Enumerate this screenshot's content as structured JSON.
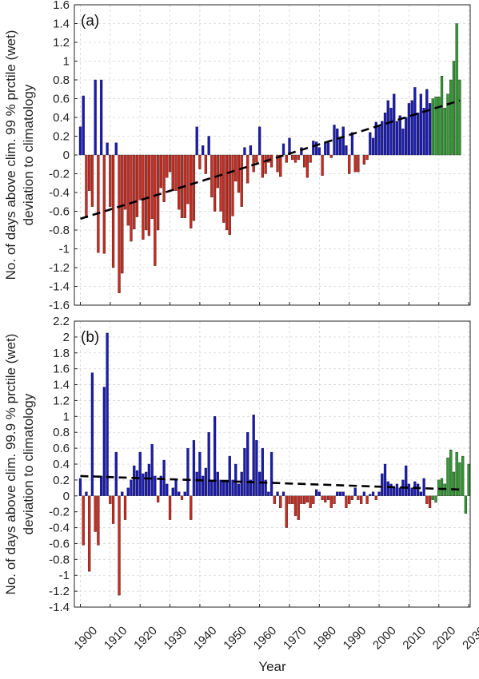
{
  "colors": {
    "negative": "#cc2a1f",
    "positive": "#1a1ab8",
    "recent": "#2e9a2e",
    "trend": "#000000",
    "grid": "#d6d6d6"
  },
  "shared": {
    "xlabel": "Year",
    "x_ticks": [
      1900,
      1910,
      1920,
      1930,
      1940,
      1950,
      1960,
      1970,
      1980,
      1990,
      2000,
      2010,
      2020,
      2030
    ],
    "xlim": [
      1898,
      2030.5
    ],
    "recent_from_year": 2018
  },
  "chart_data": [
    {
      "type": "bar",
      "panel_label": "(a)",
      "ylabel_line1": "No. of days above clim. 99 % prctile (wet)",
      "ylabel_line2": "deviation to climatology",
      "ylim": [
        -1.6,
        1.6
      ],
      "y_ticks": [
        -1.6,
        -1.4,
        -1.2,
        -1,
        -0.8,
        -0.6,
        -0.4,
        -0.2,
        0,
        0.2,
        0.4,
        0.6,
        0.8,
        1,
        1.2,
        1.4,
        1.6
      ],
      "grid": true,
      "start_year": 1900,
      "values": [
        0.3,
        0.63,
        -0.67,
        -0.38,
        -0.55,
        0.8,
        -1.04,
        0.8,
        -1.05,
        0.13,
        -0.55,
        -1.2,
        0.13,
        -1.47,
        -1.26,
        -0.58,
        -0.75,
        -0.92,
        -0.79,
        -0.66,
        -0.48,
        -0.9,
        -0.8,
        -0.86,
        -0.68,
        -1.18,
        -0.8,
        -0.35,
        -0.5,
        -0.24,
        -0.18,
        -0.38,
        -0.38,
        -0.58,
        -0.67,
        -0.67,
        -0.52,
        -0.78,
        -0.7,
        0.3,
        -0.15,
        0.1,
        -0.2,
        0.2,
        -0.45,
        -0.6,
        -0.35,
        -0.6,
        -0.72,
        -0.8,
        -0.85,
        -0.65,
        -0.28,
        -0.4,
        -0.55,
        0.08,
        -0.3,
        0.1,
        -0.18,
        -0.08,
        0.3,
        -0.24,
        -0.2,
        -0.08,
        -0.13,
        0.0,
        -0.18,
        -0.23,
        0.12,
        -0.08,
        0.18,
        -0.05,
        -0.08,
        -0.05,
        0.08,
        -0.13,
        -0.24,
        -0.08,
        0.15,
        0.14,
        0.08,
        -0.22,
        0.14,
        0.13,
        -0.03,
        0.32,
        0.28,
        0.18,
        0.3,
        0.1,
        -0.2,
        0.24,
        -0.18,
        -0.18,
        0.0,
        -0.1,
        -0.05,
        0.24,
        0.18,
        0.35,
        0.3,
        0.36,
        0.45,
        0.58,
        0.5,
        0.65,
        0.36,
        0.42,
        0.28,
        0.4,
        0.55,
        0.58,
        0.72,
        0.45,
        0.65,
        0.5,
        0.7,
        0.55,
        0.6,
        0.62,
        0.62,
        0.84,
        0.5,
        0.65,
        0.8,
        1.0,
        1.4,
        0.8
      ],
      "trend": {
        "x": [
          1900,
          2027
        ],
        "y": [
          -0.68,
          0.58
        ]
      }
    },
    {
      "type": "bar",
      "panel_label": "(b)",
      "ylabel_line1": "No. of days above clim. 99.9 % prctile (wet)",
      "ylabel_line2": "deviation to climatology",
      "ylim": [
        -1.4,
        2.2
      ],
      "y_ticks": [
        -1.4,
        -1.2,
        -1,
        -0.8,
        -0.6,
        -0.4,
        -0.2,
        0,
        0.2,
        0.4,
        0.6,
        0.8,
        1,
        1.2,
        1.4,
        1.6,
        1.8,
        2,
        2.2
      ],
      "grid": true,
      "start_year": 1900,
      "values": [
        0.22,
        -0.62,
        0.05,
        -0.95,
        1.55,
        -0.45,
        -0.62,
        0.25,
        1.37,
        2.05,
        -0.1,
        -0.35,
        0.55,
        -1.25,
        0.05,
        -0.3,
        0.1,
        0.2,
        0.38,
        0.32,
        0.55,
        0.28,
        0.3,
        0.4,
        0.65,
        0.25,
        -0.08,
        0.25,
        0.45,
        0.15,
        -0.3,
        0.1,
        0.2,
        0.05,
        -0.05,
        0.05,
        0.6,
        -0.3,
        0.7,
        0.3,
        0.55,
        0.25,
        0.35,
        0.8,
        0.2,
        1.0,
        0.3,
        0.2,
        0.2,
        0.2,
        0.5,
        0.2,
        0.4,
        0.15,
        0.3,
        0.6,
        0.8,
        0.2,
        1.02,
        0.7,
        0.3,
        0.6,
        0.2,
        0.05,
        0.55,
        -0.1,
        0.05,
        -0.15,
        0.05,
        -0.4,
        -0.1,
        -0.1,
        -0.25,
        -0.3,
        -0.1,
        -0.1,
        -0.08,
        -0.15,
        -0.1,
        0.08,
        0.05,
        -0.05,
        -0.08,
        -0.05,
        -0.15,
        -0.1,
        0.05,
        0.05,
        0.05,
        -0.15,
        -0.1,
        -0.05,
        0.1,
        -0.05,
        -0.1,
        0.05,
        -0.1,
        0.02,
        0.05,
        -0.05,
        0.05,
        0.28,
        0.4,
        0.18,
        0.15,
        0.1,
        0.15,
        0.1,
        0.2,
        0.38,
        0.15,
        0.1,
        0.18,
        0.15,
        0.05,
        0.22,
        -0.1,
        -0.15,
        -0.05,
        -0.08,
        0.2,
        0.22,
        0.15,
        0.48,
        0.58,
        0.3,
        0.55,
        0.42,
        0.5,
        -0.22,
        0.4
      ],
      "trend": {
        "x": [
          1900,
          2027
        ],
        "y": [
          0.25,
          0.08
        ]
      }
    }
  ]
}
